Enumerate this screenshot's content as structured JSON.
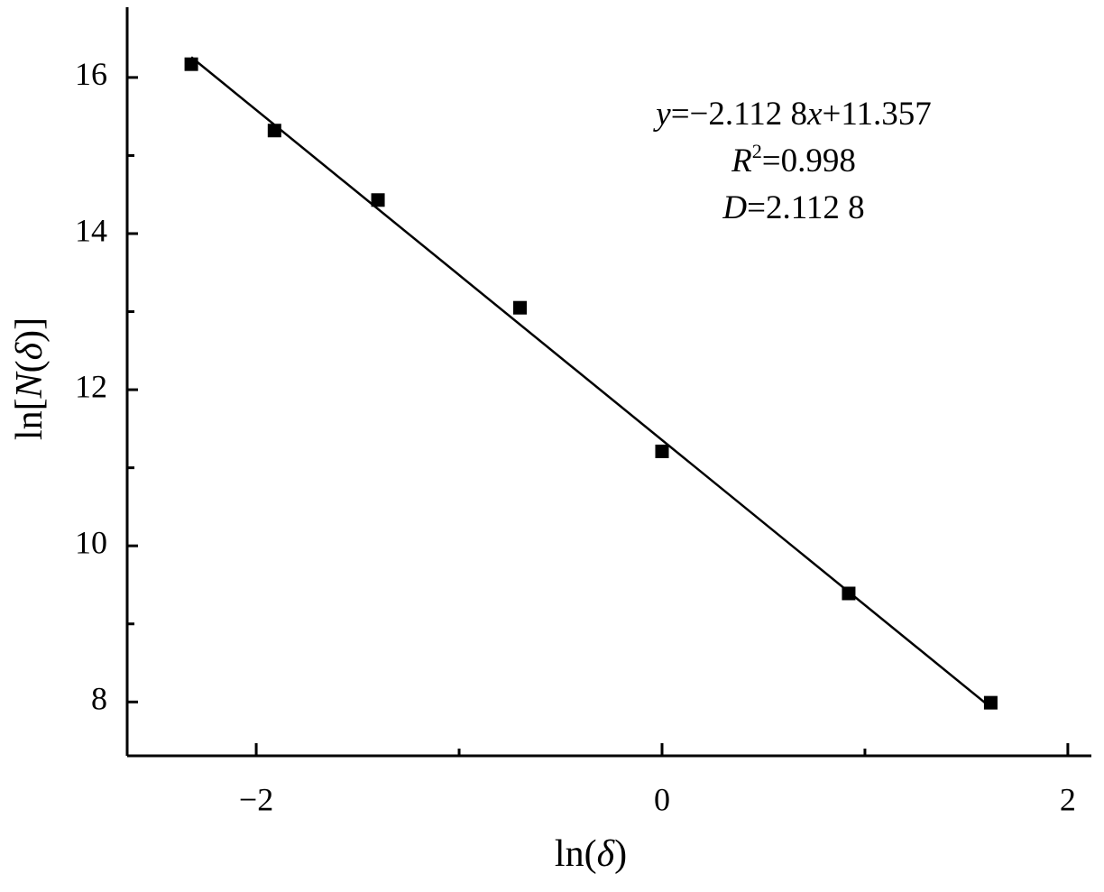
{
  "chart_data": {
    "type": "scatter",
    "x": [
      -2.32,
      -1.91,
      -1.4,
      -0.7,
      0,
      0.92,
      1.62
    ],
    "values": [
      16.17,
      15.32,
      14.43,
      13.05,
      11.21,
      9.39,
      7.99
    ],
    "color": "#000000",
    "fit_line": {
      "x": [
        -2.32,
        1.62
      ],
      "values": [
        16.26,
        7.93
      ],
      "color": "#000000"
    },
    "xlim": [
      -2.636,
      2.116
    ],
    "ylim": [
      7.31,
      16.9
    ],
    "xticks": [
      {
        "value": -2,
        "label": "−2"
      },
      0,
      2
    ],
    "yticks": [
      8,
      10,
      12,
      14,
      16
    ],
    "xminor": [
      -1,
      1
    ],
    "yminor": [
      9,
      11,
      13,
      15
    ],
    "xlabel": [
      {
        "text": "ln("
      },
      {
        "text": "δ",
        "style": "italic"
      },
      {
        "text": ")"
      }
    ],
    "ylabel": [
      {
        "text": "ln["
      },
      {
        "text": "N",
        "style": "italic"
      },
      {
        "text": "("
      },
      {
        "text": "δ",
        "style": "italic"
      },
      {
        "text": ")]"
      }
    ],
    "annotations": [
      [
        {
          "text": "y",
          "style": "italic"
        },
        {
          "text": "=−2.112 8"
        },
        {
          "text": "x",
          "style": "italic"
        },
        {
          "text": "+11.357"
        }
      ],
      [
        {
          "text": "R",
          "style": "italic"
        },
        {
          "text": "2",
          "style": "sup"
        },
        {
          "text": "=0.998"
        }
      ],
      [
        {
          "text": "D",
          "style": "italic"
        },
        {
          "text": "=2.112 8"
        }
      ]
    ]
  }
}
